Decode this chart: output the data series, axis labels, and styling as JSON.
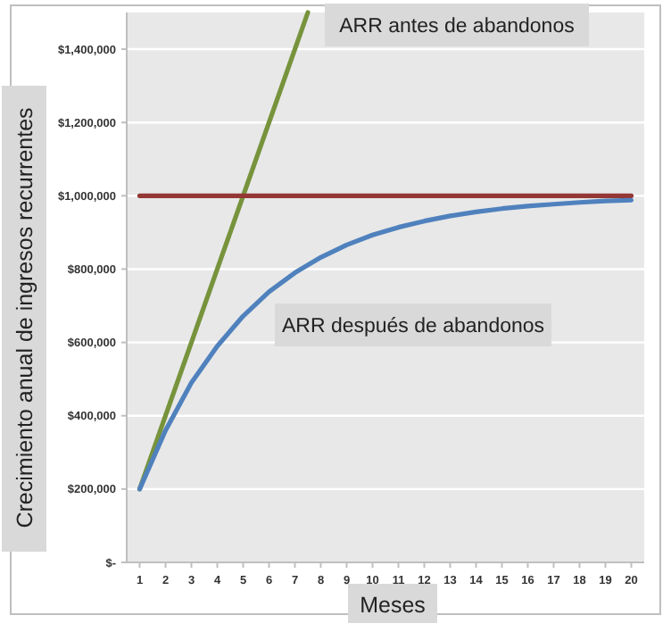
{
  "chart_data": {
    "type": "line",
    "xlabel": "Meses",
    "ylabel": "Crecimiento anual de ingresos recurrentes",
    "xlim": [
      0.5,
      20.5
    ],
    "xticks": [
      1,
      2,
      3,
      4,
      5,
      6,
      7,
      8,
      9,
      10,
      11,
      12,
      13,
      14,
      15,
      16,
      17,
      18,
      19,
      20
    ],
    "ylim": [
      0,
      1500000
    ],
    "yticks": [
      {
        "value": 0,
        "label": "$-"
      },
      {
        "value": 200000,
        "label": "$200,000"
      },
      {
        "value": 400000,
        "label": "$400,000"
      },
      {
        "value": 600000,
        "label": "$600,000"
      },
      {
        "value": 800000,
        "label": "$800,000"
      },
      {
        "value": 1000000,
        "label": "$1,000,000"
      },
      {
        "value": 1200000,
        "label": "$1,200,000"
      },
      {
        "value": 1400000,
        "label": "$1,400,000"
      }
    ],
    "grid": "y",
    "series": [
      {
        "name": "ARR antes de abandonos",
        "color": "#77933c",
        "x": [
          1,
          2,
          3,
          4,
          5,
          6,
          7,
          7.5
        ],
        "values": [
          200000,
          400000,
          600000,
          800000,
          1000000,
          1200000,
          1400000,
          1500000
        ]
      },
      {
        "color": "#953735",
        "x": [
          1,
          20
        ],
        "values": [
          1000000,
          1000000
        ]
      },
      {
        "name": "ARR después de abandonos",
        "color": "#4f81bd",
        "x": [
          1,
          2,
          3,
          4,
          5,
          6,
          7,
          8,
          9,
          10,
          11,
          12,
          13,
          14,
          15,
          16,
          17,
          18,
          19,
          20
        ],
        "values": [
          200000,
          360000,
          490000,
          590000,
          672000,
          738000,
          790000,
          832000,
          866000,
          893000,
          914000,
          931000,
          945000,
          956000,
          965000,
          972000,
          977000,
          982000,
          986000,
          988000
        ]
      }
    ]
  }
}
